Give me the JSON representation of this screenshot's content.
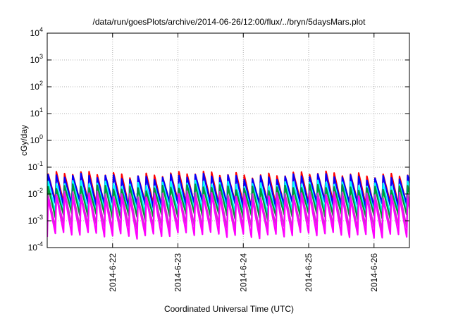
{
  "chart_data": {
    "type": "line",
    "title": "/data/run/goesPlots/archive/2014-06-26/12:00/flux/../bryn/5daysMars.plot",
    "xlabel": "Coordinated Universal Time (UTC)",
    "ylabel": "cGy/day",
    "yscale": "log",
    "ylim": [
      0.0001,
      10000
    ],
    "y_ticks": [
      {
        "base": "10",
        "exp": "-4",
        "value": 0.0001
      },
      {
        "base": "10",
        "exp": "-3",
        "value": 0.001
      },
      {
        "base": "10",
        "exp": "-2",
        "value": 0.01
      },
      {
        "base": "10",
        "exp": "-1",
        "value": 0.1
      },
      {
        "base": "10",
        "exp": "0",
        "value": 1
      },
      {
        "base": "10",
        "exp": "1",
        "value": 10
      },
      {
        "base": "10",
        "exp": "2",
        "value": 100
      },
      {
        "base": "10",
        "exp": "3",
        "value": 1000
      },
      {
        "base": "10",
        "exp": "4",
        "value": 10000
      }
    ],
    "xlim": [
      "2014-06-21T00:00",
      "2014-06-26T13:00"
    ],
    "x_ticks": [
      {
        "label": "2014-6-22",
        "t": "2014-06-22T00:00"
      },
      {
        "label": "2014-6-23",
        "t": "2014-06-23T00:00"
      },
      {
        "label": "2014-6-24",
        "t": "2014-06-24T00:00"
      },
      {
        "label": "2014-6-25",
        "t": "2014-06-25T00:00"
      },
      {
        "label": "2014-6-26",
        "t": "2014-06-26T00:00"
      }
    ],
    "grid": true,
    "oscillation_period_hours": 3,
    "series": [
      {
        "color": "#ff0000",
        "peak": 0.055,
        "trough": 0.0045
      },
      {
        "color": "#0000ff",
        "peak": 0.045,
        "trough": 0.004
      },
      {
        "color": "#00ffff",
        "peak": 0.025,
        "trough": 0.0022
      },
      {
        "color": "#009933",
        "peak": 0.018,
        "trough": 0.0015
      },
      {
        "color": "#cc33cc",
        "peak": 0.01,
        "trough": 0.0006
      },
      {
        "color": "#ff00ff",
        "peak": 0.008,
        "trough": 0.0003
      }
    ]
  }
}
